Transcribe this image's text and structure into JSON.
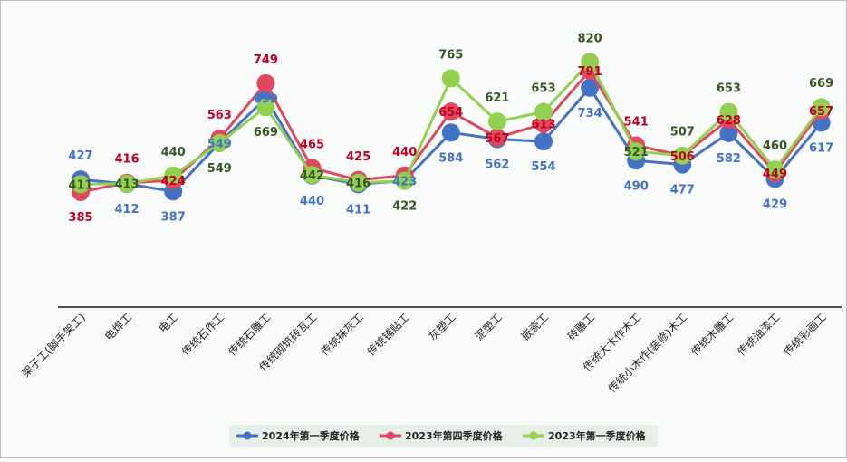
{
  "chart_data": {
    "type": "line",
    "title": "",
    "xlabel": "",
    "ylabel": "",
    "ylim": [
      0,
      900
    ],
    "grid": false,
    "legend_position": "bottom",
    "categories": [
      "架子工(脚手架工)",
      "电焊工",
      "电工",
      "传统石作工",
      "传统石雕工",
      "传统砌筑砖瓦工",
      "传统抹灰工",
      "传统铺贴工",
      "灰塑工",
      "泥塑工",
      "嵌瓷工",
      "砖雕工",
      "传统大木作木工",
      "传统小木作(装修)木工",
      "传统木雕工",
      "传统油漆工",
      "传统彩画工"
    ],
    "series": [
      {
        "name": "2024年第一季度价格",
        "color": "#4472C4",
        "label_color": "#4472C4",
        "values": [
          427,
          412,
          387,
          549,
          699,
          440,
          411,
          423,
          584,
          562,
          554,
          734,
          490,
          477,
          582,
          429,
          617
        ]
      },
      {
        "name": "2023年第四季度价格",
        "color": "#E0485E",
        "label_color": "#C00020",
        "values": [
          385,
          416,
          424,
          563,
          749,
          465,
          425,
          440,
          654,
          567,
          613,
          791,
          541,
          506,
          628,
          449,
          657
        ]
      },
      {
        "name": "2023年第一季度价格",
        "color": "#92D050",
        "label_color": "#375623",
        "values": [
          411,
          413,
          440,
          549,
          669,
          442,
          416,
          422,
          765,
          621,
          653,
          820,
          521,
          507,
          653,
          460,
          669
        ]
      }
    ]
  }
}
